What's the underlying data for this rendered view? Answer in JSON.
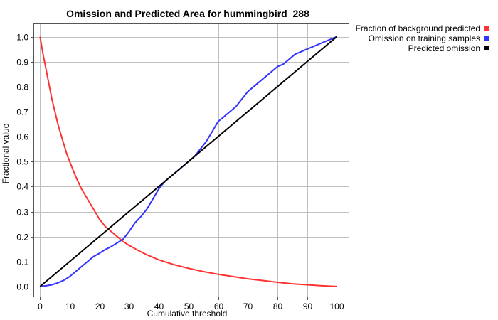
{
  "chart_data": {
    "type": "line",
    "title": "Omission and Predicted Area for hummingbird_288",
    "xlabel": "Cumulative threshold",
    "ylabel": "Fractional value",
    "xlim": [
      -2,
      104
    ],
    "ylim": [
      -0.04,
      1.05
    ],
    "xticks": [
      0,
      10,
      20,
      30,
      40,
      50,
      60,
      70,
      80,
      90,
      100
    ],
    "yticks": [
      0.0,
      0.1,
      0.2,
      0.3,
      0.4,
      0.5,
      0.6,
      0.7,
      0.8,
      0.9,
      1.0
    ],
    "grid": true,
    "legend_position": "outside-top-right",
    "series": [
      {
        "name": "Fraction of background predicted",
        "color": "#ff3333",
        "x": [
          0,
          1,
          2,
          3,
          4,
          5,
          6,
          7,
          8,
          9,
          10,
          12,
          14,
          16,
          18,
          20,
          22,
          24,
          26,
          28,
          30,
          33,
          36,
          40,
          45,
          50,
          55,
          60,
          65,
          70,
          75,
          80,
          85,
          90,
          95,
          100
        ],
        "y": [
          1.0,
          0.93,
          0.87,
          0.81,
          0.75,
          0.7,
          0.65,
          0.61,
          0.57,
          0.53,
          0.5,
          0.44,
          0.39,
          0.35,
          0.31,
          0.27,
          0.24,
          0.22,
          0.2,
          0.18,
          0.165,
          0.145,
          0.127,
          0.107,
          0.088,
          0.073,
          0.06,
          0.049,
          0.04,
          0.031,
          0.024,
          0.017,
          0.011,
          0.007,
          0.003,
          0.0
        ]
      },
      {
        "name": "Omission on training samples",
        "color": "#3333ff",
        "x": [
          0,
          2,
          4,
          6,
          8,
          10,
          12,
          14,
          16,
          18,
          20,
          22,
          24,
          26,
          28,
          30,
          32,
          34,
          36,
          38,
          40,
          42,
          44,
          46,
          48,
          50,
          52,
          54,
          56,
          58,
          60,
          62,
          64,
          66,
          68,
          70,
          72,
          74,
          76,
          78,
          80,
          82,
          84,
          86,
          88,
          90,
          92,
          94,
          96,
          98,
          100
        ],
        "y": [
          0.0,
          0.003,
          0.007,
          0.015,
          0.025,
          0.04,
          0.06,
          0.08,
          0.1,
          0.12,
          0.133,
          0.148,
          0.16,
          0.175,
          0.19,
          0.22,
          0.255,
          0.28,
          0.31,
          0.35,
          0.39,
          0.42,
          0.44,
          0.46,
          0.48,
          0.5,
          0.52,
          0.55,
          0.58,
          0.62,
          0.66,
          0.68,
          0.7,
          0.72,
          0.75,
          0.78,
          0.8,
          0.82,
          0.84,
          0.86,
          0.88,
          0.89,
          0.91,
          0.93,
          0.94,
          0.95,
          0.96,
          0.97,
          0.98,
          0.99,
          1.0
        ]
      },
      {
        "name": "Predicted omission",
        "color": "#000000",
        "x": [
          0,
          100
        ],
        "y": [
          0.0,
          1.0
        ]
      }
    ]
  }
}
